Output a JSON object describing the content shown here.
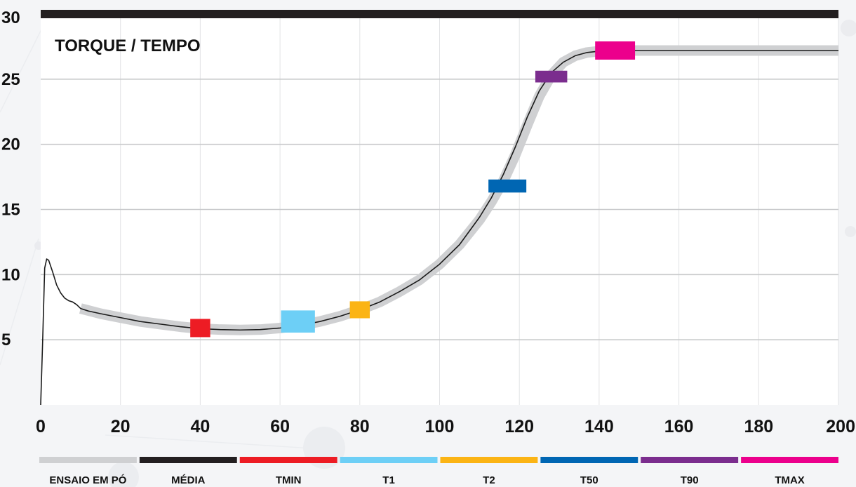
{
  "chart_data": {
    "type": "line",
    "title": "TORQUE / TEMPO",
    "xlabel": "",
    "ylabel": "",
    "xlim": [
      0,
      200
    ],
    "ylim": [
      0,
      30
    ],
    "x_ticks": [
      0,
      20,
      40,
      60,
      80,
      100,
      120,
      140,
      160,
      180,
      200
    ],
    "y_ticks": [
      5,
      10,
      15,
      20,
      25,
      30
    ],
    "grid": true,
    "series": [
      {
        "name": "MÉDIA",
        "color": "#1a1a1a",
        "x": [
          0,
          0.5,
          1,
          1.5,
          2,
          3,
          4,
          5,
          6,
          7,
          8,
          9,
          10,
          12,
          15,
          20,
          25,
          30,
          35,
          40,
          45,
          50,
          55,
          60,
          65,
          70,
          75,
          80,
          85,
          90,
          95,
          100,
          105,
          110,
          113,
          116,
          119,
          122,
          125,
          128,
          131,
          134,
          137,
          140,
          143,
          146,
          150,
          160,
          170,
          180,
          190,
          200
        ],
        "y": [
          0,
          5,
          10.5,
          11.2,
          11.1,
          10.2,
          9.2,
          8.6,
          8.2,
          8.0,
          7.9,
          7.7,
          7.4,
          7.2,
          7.0,
          6.7,
          6.4,
          6.2,
          6.0,
          5.85,
          5.78,
          5.75,
          5.78,
          5.9,
          6.1,
          6.4,
          6.8,
          7.3,
          7.9,
          8.7,
          9.6,
          10.8,
          12.3,
          14.4,
          15.9,
          17.7,
          19.8,
          22.1,
          24.1,
          25.5,
          26.3,
          26.8,
          27.05,
          27.15,
          27.2,
          27.2,
          27.2,
          27.2,
          27.2,
          27.2,
          27.2,
          27.2
        ]
      },
      {
        "name": "ENSAIO EM PÓ",
        "color": "#cfd0d2",
        "x": [
          10,
          15,
          20,
          25,
          30,
          35,
          40,
          45,
          50,
          55,
          60,
          65,
          70,
          75,
          80,
          85,
          90,
          95,
          100,
          105,
          110,
          113,
          116,
          119,
          122,
          125,
          128,
          131,
          134,
          137,
          140,
          143,
          146,
          150,
          160,
          170,
          180,
          190,
          200
        ],
        "y": [
          7.4,
          7.0,
          6.7,
          6.4,
          6.2,
          6.0,
          5.85,
          5.78,
          5.75,
          5.78,
          5.9,
          6.1,
          6.4,
          6.8,
          7.3,
          7.9,
          8.7,
          9.6,
          10.8,
          12.3,
          14.2,
          15.6,
          17.2,
          19.2,
          21.5,
          23.7,
          25.3,
          26.3,
          26.8,
          27.05,
          27.15,
          27.2,
          27.2,
          27.2,
          27.2,
          27.2,
          27.2,
          27.2,
          27.2
        ]
      }
    ],
    "markers": [
      {
        "name": "TMIN",
        "color": "#ed1c24",
        "x": 40,
        "y": 5.9,
        "width_x": 5,
        "height_y": 1.4
      },
      {
        "name": "T1",
        "color": "#6dcff6",
        "x": 64.5,
        "y": 6.4,
        "width_x": 8.5,
        "height_y": 1.7
      },
      {
        "name": "T2",
        "color": "#fbb415",
        "x": 80,
        "y": 7.3,
        "width_x": 5,
        "height_y": 1.3
      },
      {
        "name": "T50",
        "color": "#0066b3",
        "x": 117,
        "y": 16.8,
        "width_x": 9.5,
        "height_y": 1.0
      },
      {
        "name": "T90",
        "color": "#7b2d8e",
        "x": 128,
        "y": 25.2,
        "width_x": 8,
        "height_y": 0.9
      },
      {
        "name": "TMAX",
        "color": "#ec008c",
        "x": 144,
        "y": 27.2,
        "width_x": 10,
        "height_y": 1.4
      }
    ],
    "legend": [
      {
        "label": "ENSAIO EM PÓ",
        "color": "#cfd0d2"
      },
      {
        "label": "MÉDIA",
        "color": "#231f20"
      },
      {
        "label": "TMIN",
        "color": "#ed1c24"
      },
      {
        "label": "T1",
        "color": "#6dcff6"
      },
      {
        "label": "T2",
        "color": "#fbb415"
      },
      {
        "label": "T50",
        "color": "#0066b3"
      },
      {
        "label": "T90",
        "color": "#7b2d8e"
      },
      {
        "label": "TMAX",
        "color": "#ec008c"
      }
    ],
    "legend_position": "bottom"
  }
}
